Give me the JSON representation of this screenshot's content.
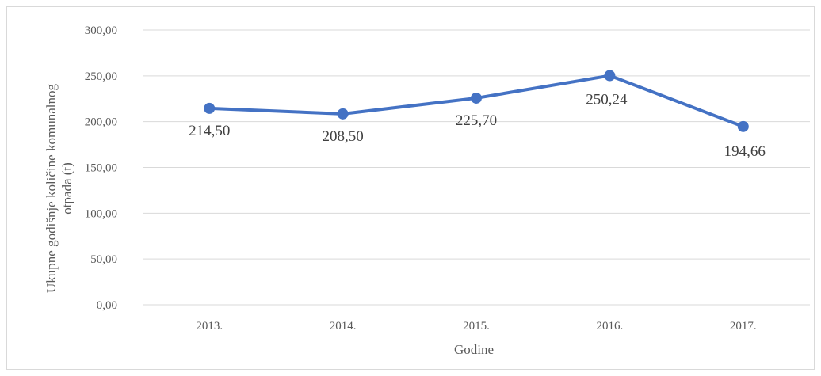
{
  "chart_data": {
    "type": "line",
    "title": "",
    "xlabel": "Godine",
    "ylabel_lines": [
      "Ukupne godišnje količine komunalnog",
      "otpada (t)"
    ],
    "categories": [
      "2013.",
      "2014.",
      "2015.",
      "2016.",
      "2017."
    ],
    "values": [
      214.5,
      208.5,
      225.7,
      250.24,
      194.66
    ],
    "data_labels": [
      "214,50",
      "208,50",
      "225,70",
      "250,24",
      "194,66"
    ],
    "ylim": [
      0,
      300
    ],
    "y_ticks": [
      0,
      50,
      100,
      150,
      200,
      250,
      300
    ],
    "y_tick_labels": [
      "0,00",
      "50,00",
      "100,00",
      "150,00",
      "200,00",
      "250,00",
      "300,00"
    ],
    "grid": true,
    "legend": "none",
    "colors": {
      "series": "#4472c4",
      "grid": "#d9d9d9",
      "text": "#595959"
    }
  }
}
